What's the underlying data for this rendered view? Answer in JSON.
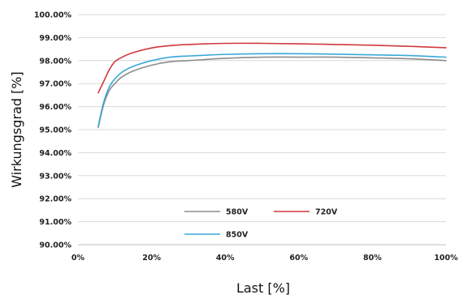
{
  "chart_data": {
    "type": "line",
    "xlabel": "Last [%]",
    "ylabel": "Wirkungsgrad [%]",
    "xlim": [
      0,
      100
    ],
    "ylim": [
      90,
      100
    ],
    "x_ticks": [
      "0%",
      "20%",
      "40%",
      "60%",
      "80%",
      "100%"
    ],
    "y_ticks": [
      "90.00%",
      "91.00%",
      "92.00%",
      "93.00%",
      "94.00%",
      "95.00%",
      "96.00%",
      "97.00%",
      "98.00%",
      "99.00%",
      "100.00%"
    ],
    "grid": "horizontal",
    "legend_position": "lower-center",
    "series": [
      {
        "name": "580V",
        "color": "#8c8c8c",
        "x": [
          5.5,
          7,
          8.5,
          10,
          12,
          15,
          20,
          25,
          30,
          40,
          50,
          60,
          70,
          80,
          90,
          100
        ],
        "y": [
          95.1,
          96.1,
          96.7,
          97.0,
          97.3,
          97.55,
          97.8,
          97.95,
          98.0,
          98.1,
          98.15,
          98.15,
          98.15,
          98.12,
          98.08,
          98.0
        ]
      },
      {
        "name": "720V",
        "color": "#d0393e",
        "x": [
          5.5,
          7,
          8.5,
          10,
          12,
          15,
          20,
          25,
          30,
          40,
          50,
          60,
          70,
          80,
          90,
          100
        ],
        "y": [
          96.6,
          97.1,
          97.6,
          97.95,
          98.15,
          98.35,
          98.55,
          98.65,
          98.7,
          98.75,
          98.75,
          98.73,
          98.7,
          98.67,
          98.62,
          98.56
        ]
      },
      {
        "name": "850V",
        "color": "#3aa8d8",
        "x": [
          5.5,
          7,
          8.5,
          10,
          12,
          15,
          20,
          25,
          30,
          40,
          50,
          60,
          70,
          80,
          90,
          100
        ],
        "y": [
          95.15,
          96.2,
          96.85,
          97.2,
          97.5,
          97.75,
          98.0,
          98.15,
          98.2,
          98.27,
          98.3,
          98.3,
          98.28,
          98.25,
          98.22,
          98.15
        ]
      }
    ]
  }
}
